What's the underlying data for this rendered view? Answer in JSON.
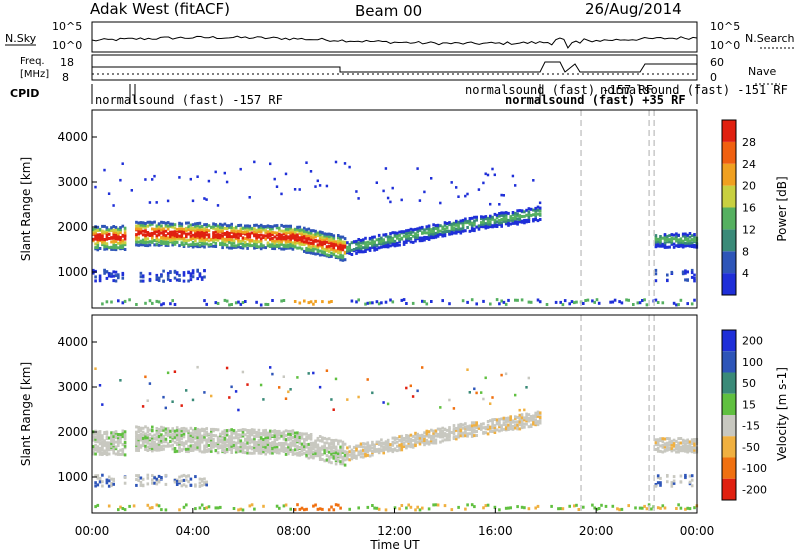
{
  "header": {
    "station": "Adak West (fitACF)",
    "beam": "Beam 00",
    "date": "26/Aug/2014"
  },
  "strip_labels": {
    "nsky": "N.Sky",
    "nsearch": "N.Search",
    "freq_line1": "Freq.",
    "freq_line2": "[MHz]",
    "nave": "Nave",
    "cpid": "CPID"
  },
  "strip_ticks": {
    "noise_left_top": "10^5",
    "noise_left_bottom": "10^0",
    "noise_right_top": "10^5",
    "noise_right_bottom": "10^0",
    "freq_left_top": "18",
    "freq_left_bottom": "8",
    "nave_right_top": "60",
    "nave_right_bottom": "0"
  },
  "cpid_labels": [
    "normalsound (fast) -157 RF",
    "normalsound (fast) -157 RF",
    "normalsound (fast) +35 RF",
    "normalsound (fast) -151 RF"
  ],
  "chart_data": [
    {
      "type": "heatmap",
      "name_label": "Power [dB]",
      "ylabel": "Slant Range [km]",
      "xlabel": "Time UT",
      "x_ticks": [
        "00:00",
        "04:00",
        "08:00",
        "12:00",
        "16:00",
        "20:00",
        "00:00"
      ],
      "y_ticks": [
        "1000",
        "2000",
        "3000",
        "4000"
      ],
      "ylim": [
        200,
        4600
      ],
      "colorbar_ticks": [
        "4",
        "8",
        "12",
        "16",
        "20",
        "24",
        "28"
      ],
      "colors": [
        "#1f2fd8",
        "#2e55b8",
        "#3a8a78",
        "#55b060",
        "#c8d040",
        "#f0a020",
        "#f06010",
        "#e02010"
      ]
    },
    {
      "type": "heatmap",
      "name_label": "Velocity [m s-1]",
      "ylabel": "Slant Range [km]",
      "xlabel": "Time UT",
      "x_ticks": [
        "00:00",
        "04:00",
        "08:00",
        "12:00",
        "16:00",
        "20:00",
        "00:00"
      ],
      "y_ticks": [
        "1000",
        "2000",
        "3000",
        "4000"
      ],
      "ylim": [
        200,
        4600
      ],
      "colorbar_ticks": [
        "200",
        "100",
        "50",
        "15",
        "-15",
        "-50",
        "-100",
        "-200"
      ],
      "colors": [
        "#1f2fd8",
        "#2e55b8",
        "#3a8a78",
        "#60c040",
        "#c8c8c0",
        "#f0b040",
        "#f07010",
        "#e02010"
      ]
    }
  ]
}
